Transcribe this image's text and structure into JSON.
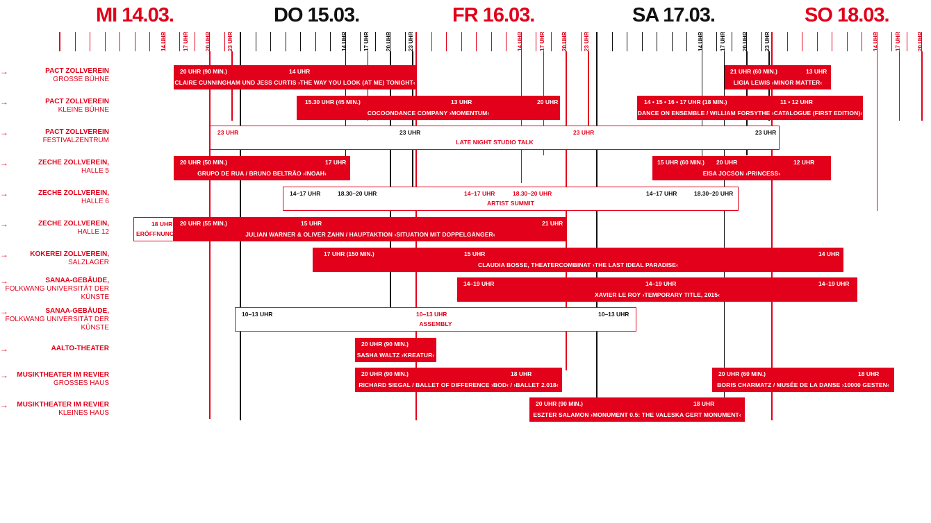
{
  "days": [
    {
      "label": "MI 14.03.",
      "color": "#e2001a"
    },
    {
      "label": "DO 15.03.",
      "color": "#111111"
    },
    {
      "label": "FR 16.03.",
      "color": "#e2001a"
    },
    {
      "label": "SA 17.03.",
      "color": "#111111"
    },
    {
      "label": "SO 18.03.",
      "color": "#e2001a"
    }
  ],
  "tick_labels": [
    "14 UHR",
    "17 UHR",
    "20 UHR",
    "23 UHR"
  ],
  "venues": [
    {
      "line1": "PACT ZOLLVEREIN",
      "line2": "GROSSE BÜHNE"
    },
    {
      "line1": "PACT ZOLLVEREIN",
      "line2": "KLEINE BÜHNE"
    },
    {
      "line1": "PACT ZOLLVEREIN",
      "line2": "FESTIVALZENTRUM"
    },
    {
      "line1": "ZECHE ZOLLVEREIN,",
      "line2": "HALLE 5"
    },
    {
      "line1": "ZECHE ZOLLVEREIN,",
      "line2": "HALLE 6"
    },
    {
      "line1": "ZECHE ZOLLVEREIN,",
      "line2": "HALLE 12"
    },
    {
      "line1": "KOKEREI ZOLLVEREIN,",
      "line2": "SALZLAGER"
    },
    {
      "line1": "SANAA-GEBÄUDE,",
      "line2": "FOLKWANG UNIVERSITÄT DER KÜNSTE"
    },
    {
      "line1": "SANAA-GEBÄUDE,",
      "line2": "FOLKWANG UNIVERSITÄT DER KÜNSTE"
    },
    {
      "line1": "AALTO-THEATER",
      "line2": ""
    },
    {
      "line1": "MUSIKTHEATER IM REVIER",
      "line2": "GROSSES HAUS"
    },
    {
      "line1": "MUSIKTHEATER IM REVIER",
      "line2": "KLEINES HAUS"
    }
  ],
  "events": [
    {
      "title": "CLAIRE CUNNINGHAM UND JESS CURTIS ›THE WAY YOU LOOK (AT ME) TONIGHT‹",
      "style": "solid",
      "times": [
        "20 UHR (90 MIN.)",
        "14 UHR"
      ]
    },
    {
      "title": "LIGIA LEWIS ›MINOR MATTER‹",
      "style": "solid",
      "times": [
        "21 UHR (60 MIN.)",
        "13 UHR"
      ]
    },
    {
      "title": "COCOONDANCE COMPANY ›MOMENTUM‹",
      "style": "solid",
      "times": [
        "15.30 UHR (45 MIN.)",
        "13 UHR",
        "20 UHR"
      ]
    },
    {
      "title": "DANCE ON ENSEMBLE / WILLIAM FORSYTHE ›CATALOGUE (FIRST EDITION)‹",
      "style": "solid",
      "times": [
        "14 • 15 • 16 • 17 UHR (18 MIN.)",
        "11 • 12 UHR"
      ]
    },
    {
      "title": "LATE NIGHT STUDIO TALK",
      "style": "outline",
      "times": [
        "23 UHR",
        "23 UHR",
        "23 UHR",
        "23 UHR"
      ]
    },
    {
      "title": "GRUPO DE RUA / BRUNO BELTRÃO ›INOAH‹",
      "style": "solid",
      "times": [
        "20 UHR (50 MIN.)",
        "17 UHR"
      ]
    },
    {
      "title": "EISA JOCSON ›PRINCESS‹",
      "style": "solid",
      "times": [
        "15 UHR (60 MIN.)",
        "20 UHR",
        "12 UHR"
      ]
    },
    {
      "title": "ARTIST SUMMIT",
      "style": "outline",
      "times": [
        "14–17 UHR",
        "18.30–20 UHR",
        "14–17 UHR",
        "18.30–20 UHR",
        "14–17 UHR",
        "18.30–20 UHR"
      ]
    },
    {
      "title": "ERÖFFNUNG",
      "style": "outline",
      "times": [
        "18 UHR"
      ]
    },
    {
      "title": "JULIAN WARNER & OLIVER ZAHN / HAUPTAKTION ›SITUATION MIT DOPPELGÄNGER‹",
      "style": "solid",
      "times": [
        "20 UHR (55 MIN.)",
        "15 UHR",
        "21 UHR"
      ]
    },
    {
      "title": "CLAUDIA BOSSE, THEATERCOMBINAT ›THE LAST IDEAL PARADISE‹",
      "style": "solid",
      "times": [
        "17 UHR (150 MIN.)",
        "15 UHR",
        "14 UHR"
      ]
    },
    {
      "title": "XAVIER LE ROY ›TEMPORARY TITLE, 2015‹",
      "style": "solid",
      "times": [
        "14–19 UHR",
        "14–19 UHR",
        "14–19 UHR"
      ]
    },
    {
      "title": "ASSEMBLY",
      "style": "outline",
      "times": [
        "10–13 UHR",
        "10–13 UHR",
        "10–13 UHR"
      ]
    },
    {
      "title": "SASHA WALTZ ›KREATUR‹",
      "style": "solid",
      "times": [
        "20 UHR (90 MIN.)"
      ]
    },
    {
      "title": "RICHARD SIEGAL / BALLET OF DIFFERENCE ›BOD‹ / ›BALLET 2.018‹",
      "style": "solid",
      "times": [
        "20 UHR (90 MIN.)",
        "18 UHR"
      ]
    },
    {
      "title": "BORIS CHARMATZ / MUSÉE DE LA DANSE ›10000 GESTEN‹",
      "style": "solid",
      "times": [
        "20 UHR (60 MIN.)",
        "18 UHR"
      ]
    },
    {
      "title": "ESZTER SALAMON ›MONUMENT 0.5: THE VALESKA GERT MONUMENT‹",
      "style": "solid",
      "times": [
        "20 UHR (90 MIN.)",
        "18 UHR"
      ]
    }
  ],
  "colors": {
    "accent": "#e2001a",
    "dark": "#111111"
  }
}
